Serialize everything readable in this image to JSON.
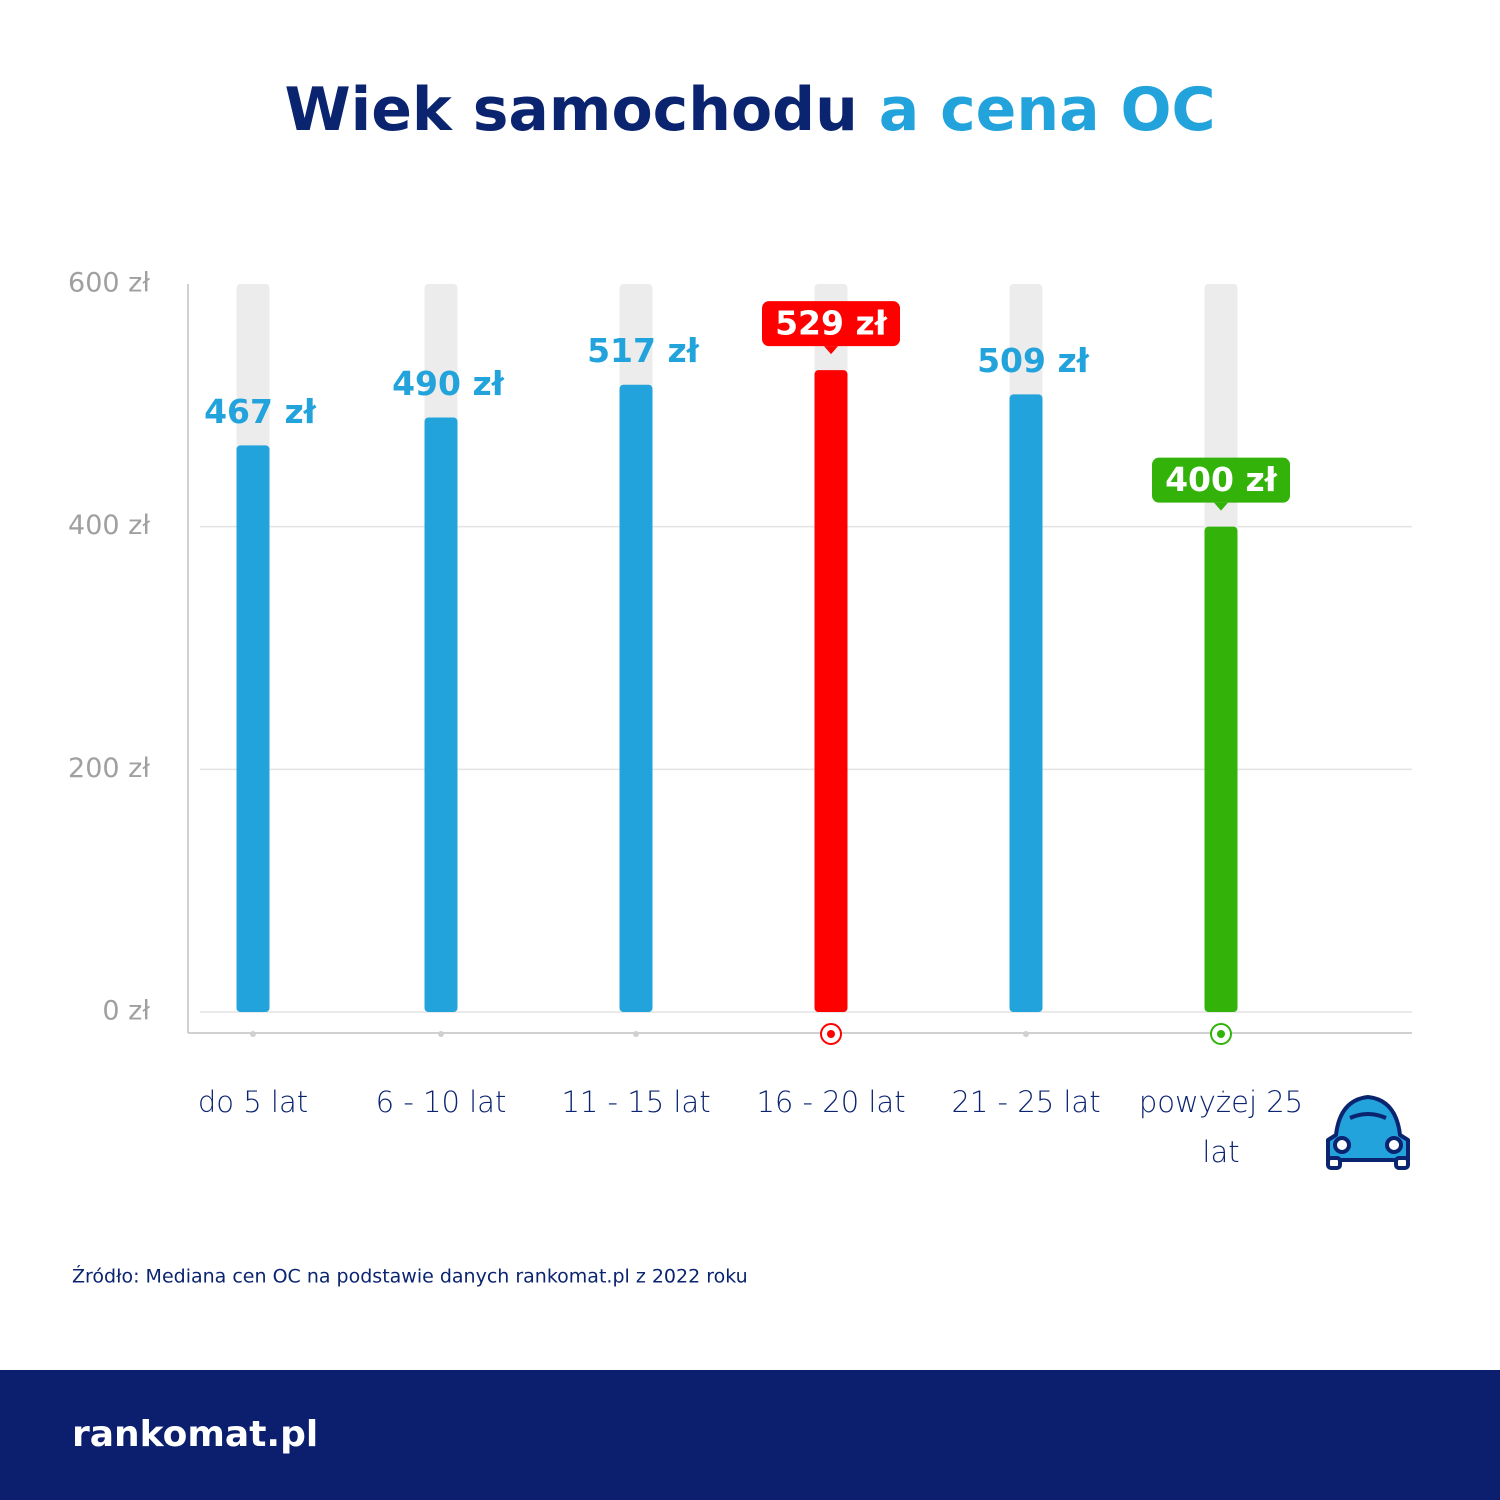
{
  "chart_data": {
    "type": "bar",
    "title": "Wiek samochodu",
    "title_highlight": "a cena OC",
    "categories": [
      "do 5 lat",
      "6 - 10 lat",
      "11 - 15 lat",
      "16 - 20 lat",
      "21 - 25 lat",
      "powyżej 25 lat"
    ],
    "values": [
      467,
      490,
      517,
      529,
      509,
      400
    ],
    "value_labels": [
      "467 zł",
      "490 zł",
      "517 zł",
      "529 zł",
      "509 zł",
      "400 zł"
    ],
    "color": "#22a3dc",
    "colors": [
      "#22a3dc",
      "#22a3dc",
      "#22a3dc",
      "#ff0000",
      "#22a3dc",
      "#33b30a"
    ],
    "ylim": [
      0,
      600
    ],
    "yticks": [
      {
        "value": 0,
        "label": "0 zł"
      },
      {
        "value": 200,
        "label": "200 zł"
      },
      {
        "value": 400,
        "label": "400 zł"
      },
      {
        "value": 600,
        "label": "600 zł"
      }
    ],
    "grid": true,
    "source": "Źródło: Mediana cen OC na podstawie danych rankomat.pl z 2022 roku"
  },
  "footer": {
    "logo": "rankomat.pl"
  }
}
